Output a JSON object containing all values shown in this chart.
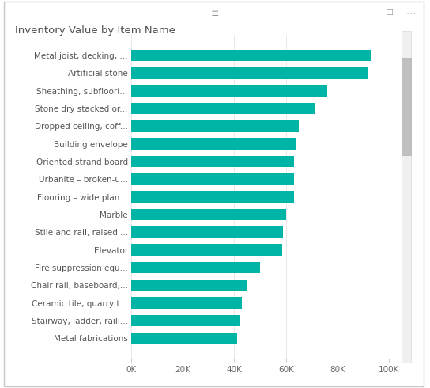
{
  "title": "Inventory Value by Item Name",
  "bar_color": "#00B4A6",
  "background_color": "#FFFFFF",
  "border_color": "#C8C8C8",
  "categories": [
    "Metal joist, decking, ...",
    "Artificial stone",
    "Sheathing, subfloori...",
    "Stone dry stacked or...",
    "Dropped ceiling, coff...",
    "Building envelope",
    "Oriented strand board",
    "Urbanite – broken-u...",
    "Flooring – wide plan...",
    "Marble",
    "Stile and rail, raised ...",
    "Elevator",
    "Fire suppression equ...",
    "Chair rail, baseboard,...",
    "Ceramic tile, quarry t...",
    "Stairway, ladder, raili...",
    "Metal fabrications"
  ],
  "values": [
    93000,
    92000,
    76000,
    71000,
    65000,
    64000,
    63000,
    63000,
    63000,
    60000,
    59000,
    58500,
    50000,
    45000,
    43000,
    42000,
    41000
  ],
  "xlim": [
    0,
    100000
  ],
  "xticks": [
    0,
    20000,
    40000,
    60000,
    80000,
    100000
  ],
  "xtick_labels": [
    "0K",
    "20K",
    "40K",
    "60K",
    "80K",
    "100K"
  ],
  "label_fontsize": 7.5,
  "title_fontsize": 9.5,
  "tick_fontsize": 7.5,
  "bar_height": 0.65,
  "figsize": [
    5.44,
    4.9
  ],
  "dpi": 100
}
